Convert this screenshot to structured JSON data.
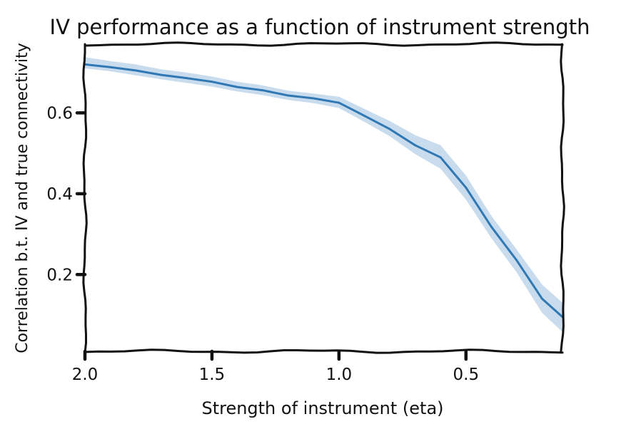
{
  "chart_data": {
    "type": "line",
    "title": "IV performance as a function of instrument strength",
    "xlabel": "Strength of instrument (eta)",
    "ylabel": "Correlation b.t. IV and true connectivity",
    "xlim": [
      2.0,
      0.12
    ],
    "ylim": [
      0.01,
      0.77
    ],
    "x_inverted": true,
    "x_ticks": [
      2.0,
      1.5,
      1.0,
      0.5
    ],
    "x_tick_labels": [
      "2.0",
      "1.5",
      "1.0",
      "0.5"
    ],
    "y_ticks": [
      0.2,
      0.4,
      0.6
    ],
    "y_tick_labels": [
      "0.2",
      "0.4",
      "0.6"
    ],
    "grid": false,
    "legend": "none",
    "style": "xkcd",
    "line_color": "#2f78b4",
    "band_color": "#c9dcee",
    "series": [
      {
        "x": [
          2.0,
          1.9,
          1.8,
          1.7,
          1.6,
          1.5,
          1.4,
          1.3,
          1.2,
          1.1,
          1.0,
          0.9,
          0.8,
          0.7,
          0.6,
          0.5,
          0.4,
          0.3,
          0.2,
          0.12
        ],
        "y": [
          0.72,
          0.713,
          0.705,
          0.694,
          0.686,
          0.677,
          0.664,
          0.656,
          0.643,
          0.636,
          0.625,
          0.593,
          0.56,
          0.52,
          0.49,
          0.415,
          0.318,
          0.235,
          0.14,
          0.095
        ],
        "lower": [
          0.71,
          0.703,
          0.693,
          0.683,
          0.674,
          0.665,
          0.653,
          0.644,
          0.632,
          0.624,
          0.612,
          0.578,
          0.542,
          0.498,
          0.462,
          0.385,
          0.29,
          0.205,
          0.105,
          0.058
        ],
        "upper": [
          0.738,
          0.728,
          0.72,
          0.708,
          0.7,
          0.69,
          0.677,
          0.668,
          0.655,
          0.648,
          0.64,
          0.61,
          0.58,
          0.545,
          0.52,
          0.445,
          0.345,
          0.262,
          0.175,
          0.13
        ]
      }
    ]
  }
}
